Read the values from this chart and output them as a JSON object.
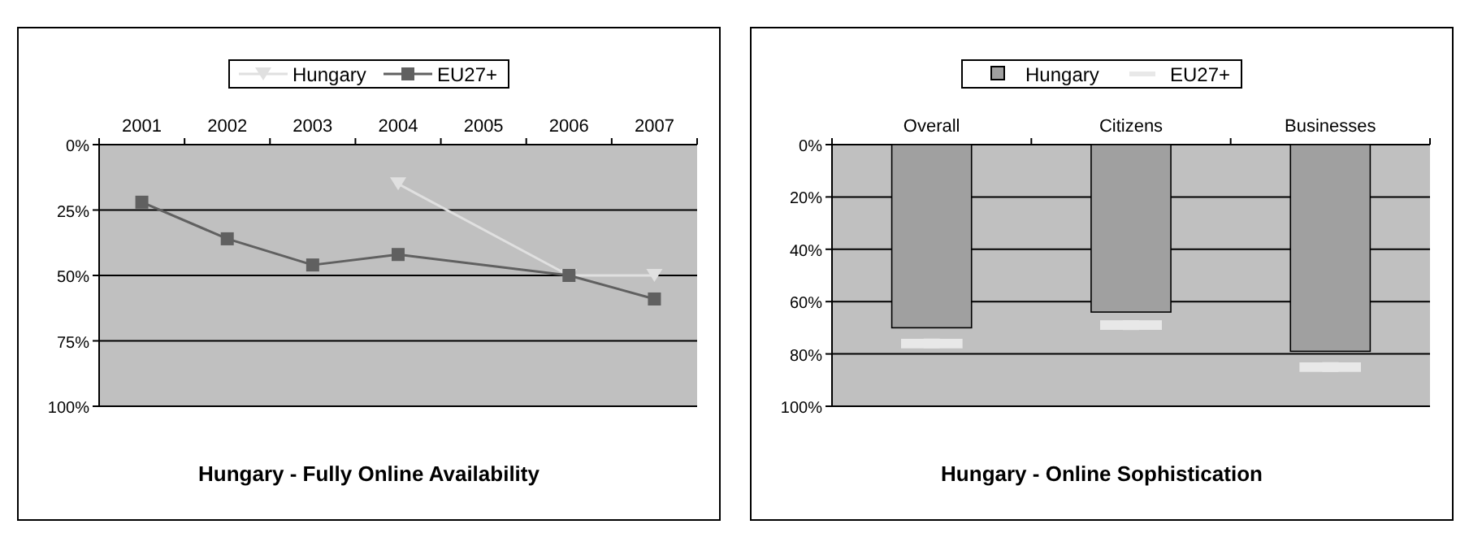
{
  "chart_data": [
    {
      "type": "line",
      "title": "Hungary - Fully Online Availability",
      "categories": [
        "2001",
        "2002",
        "2003",
        "2004",
        "2005",
        "2006",
        "2007"
      ],
      "series": [
        {
          "name": "Hungary",
          "color": "#e0e0e0",
          "marker": "triangle",
          "values": [
            null,
            null,
            null,
            15,
            null,
            50,
            50
          ]
        },
        {
          "name": "EU27+",
          "color": "#606060",
          "marker": "square",
          "values": [
            22,
            36,
            46,
            42,
            null,
            50,
            59
          ]
        }
      ],
      "ylim": [
        100,
        0
      ],
      "yticks": [
        {
          "value": 0,
          "label": "0%"
        },
        {
          "value": 25,
          "label": "25%"
        },
        {
          "value": 50,
          "label": "50%"
        },
        {
          "value": 75,
          "label": "75%"
        },
        {
          "value": 100,
          "label": "100%"
        }
      ],
      "grid": "y",
      "legend": "top",
      "line_style": "solid"
    },
    {
      "type": "bar",
      "title": "Hungary - Online Sophistication",
      "categories": [
        "Overall",
        "Citizens",
        "Businesses"
      ],
      "series": [
        {
          "name": "Hungary",
          "color": "#a0a0a0",
          "values": [
            70,
            64,
            79
          ]
        },
        {
          "name": "EU27+",
          "type": "scatter",
          "color": "#e8e8e8",
          "values": [
            76,
            69,
            85
          ]
        }
      ],
      "ylim": [
        100,
        0
      ],
      "yticks": [
        {
          "value": 0,
          "label": "0%"
        },
        {
          "value": 20,
          "label": "20%"
        },
        {
          "value": 40,
          "label": "40%"
        },
        {
          "value": 60,
          "label": "60%"
        },
        {
          "value": 80,
          "label": "80%"
        },
        {
          "value": 100,
          "label": "100%"
        }
      ],
      "grid": "y",
      "legend": "top"
    }
  ]
}
